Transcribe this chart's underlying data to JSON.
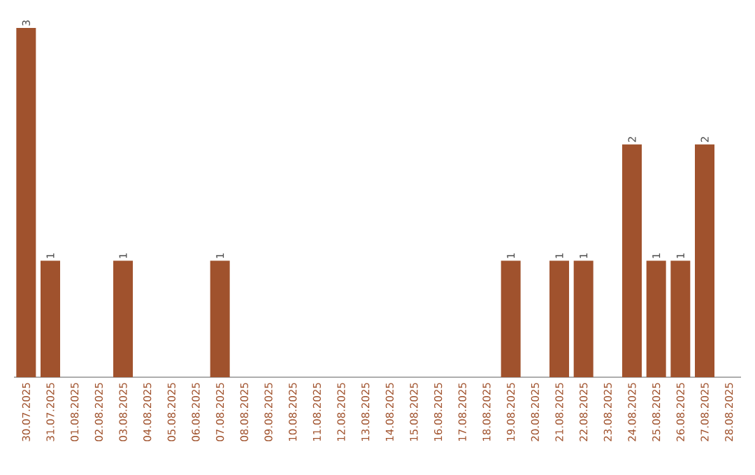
{
  "chart_data": {
    "type": "bar",
    "categories": [
      "30.07.2025",
      "31.07.2025",
      "01.08.2025",
      "02.08.2025",
      "03.08.2025",
      "04.08.2025",
      "05.08.2025",
      "06.08.2025",
      "07.08.2025",
      "08.08.2025",
      "09.08.2025",
      "10.08.2025",
      "11.08.2025",
      "12.08.2025",
      "13.08.2025",
      "14.08.2025",
      "15.08.2025",
      "16.08.2025",
      "17.08.2025",
      "18.08.2025",
      "19.08.2025",
      "20.08.2025",
      "21.08.2025",
      "22.08.2025",
      "23.08.2025",
      "24.08.2025",
      "25.08.2025",
      "26.08.2025",
      "27.08.2025",
      "28.08.2025"
    ],
    "values": [
      3,
      1,
      0,
      0,
      1,
      0,
      0,
      0,
      1,
      0,
      0,
      0,
      0,
      0,
      0,
      0,
      0,
      0,
      0,
      0,
      1,
      0,
      1,
      1,
      0,
      2,
      1,
      1,
      2,
      0
    ],
    "value_labels": [
      "3",
      "1",
      null,
      null,
      "1",
      null,
      null,
      null,
      "1",
      null,
      null,
      null,
      null,
      null,
      null,
      null,
      null,
      null,
      null,
      null,
      "1",
      null,
      "1",
      "1",
      null,
      "2",
      "1",
      "1",
      "2",
      null
    ],
    "color": "#a0522d"
  }
}
